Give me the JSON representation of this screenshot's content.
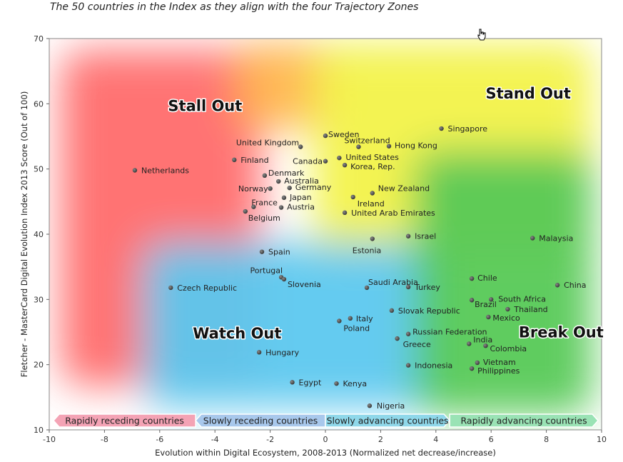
{
  "subtitle": "The 50 countries in the Index as they align with the four Trajectory Zones",
  "chart_data": {
    "type": "scatter",
    "xlabel": "Evolution within Digital Ecosystem, 2008-2013 (Normalized net decrease/increase)",
    "ylabel": "Fletcher - MasterCard Digital Evolution Index  2013 Score (Out of 100)",
    "xlim": [
      -10,
      10
    ],
    "ylim": [
      10,
      70
    ],
    "xticks": [
      -10,
      -8,
      -6,
      -4,
      -2,
      0,
      2,
      4,
      6,
      8,
      10
    ],
    "yticks": [
      10,
      20,
      30,
      40,
      50,
      60,
      70
    ],
    "grid": false,
    "legend": "none",
    "zones": [
      {
        "name": "Stall Out",
        "color": "#ff6b6b"
      },
      {
        "name": "Stand Out",
        "color": "#f2f24a"
      },
      {
        "name": "Watch Out",
        "color": "#5cc8ef"
      },
      {
        "name": "Break Out",
        "color": "#57c957"
      }
    ],
    "bands": [
      {
        "label": "Rapidly receding countries",
        "x0": -10,
        "x1": -4.7,
        "color": "#f4a3b5"
      },
      {
        "label": "Slowly receding countries",
        "x0": -4.7,
        "x1": 0,
        "color": "#a8c8ec"
      },
      {
        "label": "Slowly advancing countries",
        "x0": 0,
        "x1": 4.5,
        "color": "#8fd8ea"
      },
      {
        "label": "Rapidly advancing countries",
        "x0": 4.5,
        "x1": 10,
        "color": "#9ae3b5"
      }
    ],
    "points": [
      {
        "label": "Netherlands",
        "x": -6.9,
        "y": 49.8
      },
      {
        "label": "Czech Republic",
        "x": -5.6,
        "y": 31.8
      },
      {
        "label": "United Kingdom",
        "x": -0.9,
        "y": 53.4
      },
      {
        "label": "Finland",
        "x": -3.3,
        "y": 51.4
      },
      {
        "label": "Denmark",
        "x": -2.2,
        "y": 49.0
      },
      {
        "label": "Australia",
        "x": -1.7,
        "y": 48.1
      },
      {
        "label": "Norway",
        "x": -2.0,
        "y": 47.0
      },
      {
        "label": "Germany",
        "x": -1.3,
        "y": 47.1
      },
      {
        "label": "Japan",
        "x": -1.5,
        "y": 45.6
      },
      {
        "label": "France",
        "x": -2.6,
        "y": 44.2
      },
      {
        "label": "Austria",
        "x": -1.6,
        "y": 44.1
      },
      {
        "label": "Belgium",
        "x": -2.9,
        "y": 43.5
      },
      {
        "label": "Spain",
        "x": -2.3,
        "y": 37.3
      },
      {
        "label": "Portugal",
        "x": -1.6,
        "y": 33.4
      },
      {
        "label": "Slovenia",
        "x": -1.5,
        "y": 33.1
      },
      {
        "label": "Hungary",
        "x": -2.4,
        "y": 21.9
      },
      {
        "label": "Egypt",
        "x": -1.2,
        "y": 17.3
      },
      {
        "label": "Sweden",
        "x": 0.0,
        "y": 55.1
      },
      {
        "label": "Switzerland",
        "x": 1.2,
        "y": 53.4
      },
      {
        "label": "Canada",
        "x": 0.0,
        "y": 51.2
      },
      {
        "label": "United States",
        "x": 0.5,
        "y": 51.7
      },
      {
        "label": "Korea, Rep.",
        "x": 0.7,
        "y": 50.6
      },
      {
        "label": "Hong Kong",
        "x": 2.3,
        "y": 53.5
      },
      {
        "label": "Singapore",
        "x": 4.2,
        "y": 56.2
      },
      {
        "label": "New Zealand",
        "x": 1.7,
        "y": 46.3
      },
      {
        "label": "Ireland",
        "x": 1.0,
        "y": 45.7
      },
      {
        "label": "United Arab Emirates",
        "x": 0.7,
        "y": 43.3
      },
      {
        "label": "Israel",
        "x": 3.0,
        "y": 39.7
      },
      {
        "label": "Estonia",
        "x": 1.7,
        "y": 39.3
      },
      {
        "label": "Malaysia",
        "x": 7.5,
        "y": 39.4
      },
      {
        "label": "Saudi Arabia",
        "x": 1.5,
        "y": 31.8
      },
      {
        "label": "Turkey",
        "x": 3.0,
        "y": 31.9
      },
      {
        "label": "Chile",
        "x": 5.3,
        "y": 33.2
      },
      {
        "label": "China",
        "x": 8.4,
        "y": 32.2
      },
      {
        "label": "Brazil",
        "x": 5.3,
        "y": 29.9
      },
      {
        "label": "South Africa",
        "x": 6.0,
        "y": 30.0
      },
      {
        "label": "Thailand",
        "x": 6.6,
        "y": 28.5
      },
      {
        "label": "Mexico",
        "x": 5.9,
        "y": 27.3
      },
      {
        "label": "Slovak Republic",
        "x": 2.4,
        "y": 28.3
      },
      {
        "label": "Italy",
        "x": 0.9,
        "y": 27.1
      },
      {
        "label": "Poland",
        "x": 0.5,
        "y": 26.7
      },
      {
        "label": "Russian Federation",
        "x": 3.0,
        "y": 24.7
      },
      {
        "label": "Greece",
        "x": 2.6,
        "y": 24.0
      },
      {
        "label": "India",
        "x": 5.2,
        "y": 23.2
      },
      {
        "label": "Colombia",
        "x": 5.8,
        "y": 22.9
      },
      {
        "label": "Indonesia",
        "x": 3.0,
        "y": 19.9
      },
      {
        "label": "Vietnam",
        "x": 5.5,
        "y": 20.3
      },
      {
        "label": "Philippines",
        "x": 5.3,
        "y": 19.4
      },
      {
        "label": "Kenya",
        "x": 0.4,
        "y": 17.1
      },
      {
        "label": "Nigeria",
        "x": 1.6,
        "y": 13.7
      }
    ]
  }
}
